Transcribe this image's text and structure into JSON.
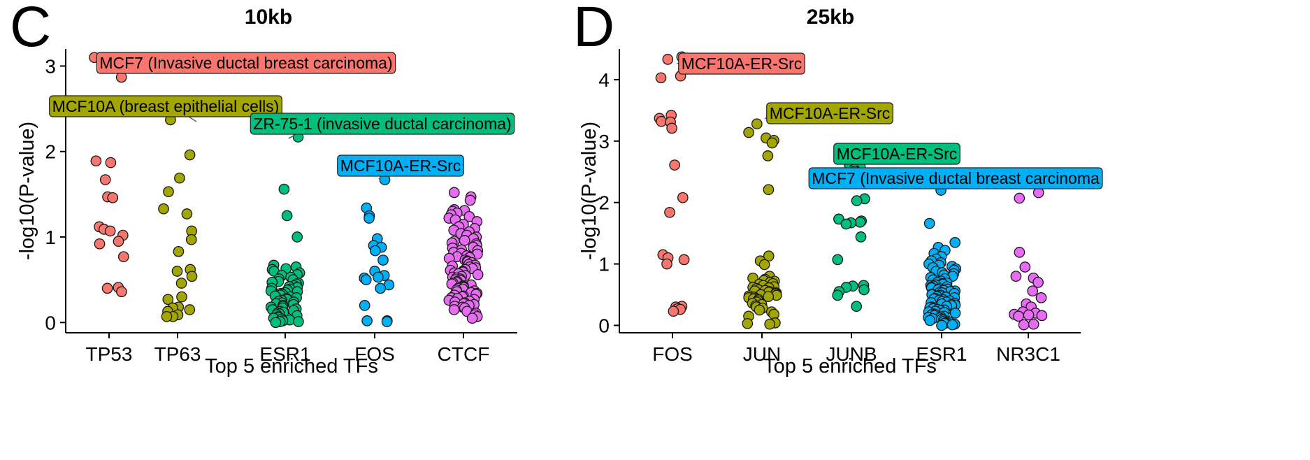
{
  "chart_data": [
    {
      "panel": "C",
      "type": "scatter",
      "title": "10kb",
      "xlabel": "Top 5 enriched TFs",
      "ylabel": "-log10(P-value)",
      "categories": [
        "TP53",
        "TP63",
        "ESR1",
        "FOS",
        "CTCF"
      ],
      "colors": [
        "#F8766D",
        "#A3A500",
        "#00BF7D",
        "#00B0F6",
        "#E76BF3"
      ],
      "ylim": [
        -0.12,
        3.2
      ],
      "yticks": [
        0,
        1,
        2,
        3
      ],
      "grid": false,
      "series": [
        {
          "category": "TP53",
          "values": [
            3.1,
            2.87,
            1.89,
            1.87,
            1.67,
            1.47,
            1.46,
            1.12,
            1.09,
            1.07,
            1.02,
            0.95,
            0.92,
            0.77,
            0.41,
            0.4,
            0.36
          ]
        },
        {
          "category": "TP63",
          "values": [
            2.52,
            2.37,
            1.96,
            1.69,
            1.53,
            1.33,
            1.27,
            1.07,
            0.97,
            0.83,
            0.62,
            0.6,
            0.54,
            0.46,
            0.3,
            0.27,
            0.18,
            0.17,
            0.15,
            0.13,
            0.09,
            0.07,
            0.07
          ]
        },
        {
          "category": "ESR1",
          "values": [
            2.17,
            1.56,
            1.25,
            1.0,
            0.67,
            0.65,
            0.63,
            0.62,
            0.6,
            0.58,
            0.56,
            0.55,
            0.53,
            0.51,
            0.5,
            0.48,
            0.47,
            0.46,
            0.45,
            0.43,
            0.42,
            0.41,
            0.4,
            0.39,
            0.38,
            0.37,
            0.36,
            0.35,
            0.34,
            0.33,
            0.32,
            0.31,
            0.3,
            0.29,
            0.28,
            0.27,
            0.26,
            0.25,
            0.24,
            0.23,
            0.22,
            0.21,
            0.2,
            0.19,
            0.18,
            0.17,
            0.16,
            0.15,
            0.14,
            0.13,
            0.12,
            0.11,
            0.1,
            0.09,
            0.08,
            0.07,
            0.06,
            0.05,
            0.04,
            0.03,
            0.02,
            0.01,
            0.01,
            0.0
          ]
        },
        {
          "category": "FOS",
          "values": [
            1.67,
            1.34,
            1.25,
            1.22,
            0.98,
            0.9,
            0.88,
            0.84,
            0.73,
            0.6,
            0.55,
            0.53,
            0.52,
            0.5,
            0.44,
            0.4,
            0.2,
            0.02,
            0.02,
            0.01
          ]
        },
        {
          "category": "CTCF",
          "values": [
            1.52,
            1.47,
            1.43,
            1.32,
            1.31,
            1.3,
            1.28,
            1.26,
            1.24,
            1.22,
            1.2,
            1.18,
            1.15,
            1.12,
            1.1,
            1.08,
            1.06,
            1.04,
            1.02,
            1.0,
            0.98,
            0.96,
            0.95,
            0.93,
            0.92,
            0.9,
            0.88,
            0.87,
            0.85,
            0.84,
            0.82,
            0.81,
            0.8,
            0.78,
            0.77,
            0.76,
            0.75,
            0.73,
            0.72,
            0.71,
            0.7,
            0.68,
            0.67,
            0.66,
            0.65,
            0.64,
            0.63,
            0.62,
            0.61,
            0.6,
            0.59,
            0.58,
            0.57,
            0.56,
            0.55,
            0.54,
            0.53,
            0.52,
            0.51,
            0.5,
            0.49,
            0.48,
            0.47,
            0.46,
            0.45,
            0.44,
            0.43,
            0.42,
            0.41,
            0.4,
            0.39,
            0.38,
            0.37,
            0.36,
            0.35,
            0.34,
            0.33,
            0.32,
            0.31,
            0.3,
            0.29,
            0.28,
            0.27,
            0.26,
            0.25,
            0.24,
            0.23,
            0.22,
            0.21,
            0.2,
            0.19,
            0.18,
            0.17,
            0.15,
            0.13,
            0.11,
            0.09,
            0.07,
            0.05
          ]
        }
      ],
      "annotations": [
        {
          "text": "MCF7 (Invasive ductal breast carcinoma)",
          "category": "TP53",
          "value": 3.1,
          "label_x": "TP53",
          "label_y": 3.05,
          "anchor": "left-of-label",
          "color": "#F8766D"
        },
        {
          "text": "MCF10A (breast epithelial cells)",
          "category": "TP63",
          "value": 2.37,
          "label_x": "TP63",
          "label_y": 2.55,
          "anchor": "center",
          "color": "#A3A500"
        },
        {
          "text": "ZR-75-1 (invasive ductal carcinoma)",
          "category": "ESR1",
          "value": 2.17,
          "label_x": "ESR1",
          "label_y": 2.34,
          "anchor": "center",
          "color": "#00BF7D"
        },
        {
          "text": "MCF10A-ER-Src",
          "category": "FOS",
          "value": 1.67,
          "label_x": "FOS",
          "label_y": 1.84,
          "anchor": "center",
          "color": "#00B0F6"
        }
      ]
    },
    {
      "panel": "D",
      "type": "scatter",
      "title": "25kb",
      "xlabel": "Top 5 enriched TFs",
      "ylabel": "-log10(P-value)",
      "categories": [
        "FOS",
        "JUN",
        "JUNB",
        "ESR1",
        "NR3C1"
      ],
      "colors": [
        "#F8766D",
        "#A3A500",
        "#00BF7D",
        "#00B0F6",
        "#E76BF3"
      ],
      "ylim": [
        -0.12,
        4.5
      ],
      "yticks": [
        0,
        1,
        2,
        3,
        4
      ],
      "grid": false,
      "series": [
        {
          "category": "FOS",
          "values": [
            4.37,
            4.33,
            4.06,
            4.03,
            3.42,
            3.37,
            3.32,
            3.31,
            3.21,
            2.61,
            2.08,
            1.84,
            1.15,
            1.1,
            1.07,
            1.0,
            0.31,
            0.3,
            0.27,
            0.26,
            0.23
          ]
        },
        {
          "category": "JUN",
          "values": [
            3.28,
            3.14,
            3.05,
            3.01,
            2.97,
            2.76,
            2.21,
            1.13,
            1.05,
            0.99,
            0.8,
            0.77,
            0.75,
            0.73,
            0.72,
            0.7,
            0.68,
            0.67,
            0.65,
            0.63,
            0.62,
            0.61,
            0.6,
            0.58,
            0.57,
            0.56,
            0.55,
            0.54,
            0.53,
            0.52,
            0.51,
            0.5,
            0.49,
            0.48,
            0.47,
            0.46,
            0.45,
            0.44,
            0.43,
            0.42,
            0.4,
            0.38,
            0.36,
            0.34,
            0.32,
            0.3,
            0.28,
            0.25,
            0.22,
            0.18,
            0.15,
            0.04,
            0.03,
            0.02
          ]
        },
        {
          "category": "JUNB",
          "values": [
            2.62,
            2.59,
            2.58,
            2.54,
            2.51,
            2.06,
            2.03,
            1.73,
            1.7,
            1.68,
            1.67,
            1.65,
            1.44,
            1.07,
            0.65,
            0.64,
            0.62,
            0.58,
            0.55,
            0.49,
            0.31
          ]
        },
        {
          "category": "ESR1",
          "values": [
            2.2,
            1.66,
            1.35,
            1.27,
            1.22,
            1.17,
            1.12,
            1.08,
            1.05,
            1.02,
            1.0,
            0.98,
            0.96,
            0.94,
            0.92,
            0.9,
            0.88,
            0.86,
            0.84,
            0.82,
            0.8,
            0.78,
            0.76,
            0.74,
            0.72,
            0.7,
            0.69,
            0.68,
            0.67,
            0.66,
            0.65,
            0.64,
            0.63,
            0.62,
            0.61,
            0.6,
            0.59,
            0.58,
            0.57,
            0.56,
            0.55,
            0.54,
            0.53,
            0.52,
            0.51,
            0.5,
            0.49,
            0.48,
            0.47,
            0.46,
            0.45,
            0.44,
            0.43,
            0.42,
            0.41,
            0.4,
            0.39,
            0.38,
            0.37,
            0.36,
            0.35,
            0.34,
            0.33,
            0.32,
            0.31,
            0.3,
            0.29,
            0.28,
            0.27,
            0.26,
            0.25,
            0.24,
            0.23,
            0.22,
            0.21,
            0.2,
            0.19,
            0.18,
            0.17,
            0.16,
            0.15,
            0.14,
            0.13,
            0.12,
            0.11,
            0.1,
            0.09,
            0.08,
            0.07,
            0.06,
            0.05,
            0.04,
            0.03,
            0.02,
            0.01,
            0.0
          ]
        },
        {
          "category": "NR3C1",
          "values": [
            2.16,
            2.07,
            1.19,
            0.95,
            0.8,
            0.77,
            0.7,
            0.56,
            0.45,
            0.35,
            0.3,
            0.22,
            0.2,
            0.18,
            0.17,
            0.16,
            0.15,
            0.02,
            0.01
          ]
        }
      ],
      "annotations": [
        {
          "text": "MCF10A-ER-Src",
          "category": "FOS",
          "value": 4.37,
          "label_x": "FOS",
          "label_y": 4.3,
          "anchor": "left-of-label",
          "color": "#F8766D"
        },
        {
          "text": "MCF10A-ER-Src",
          "category": "JUN",
          "value": 3.28,
          "label_x": "JUN",
          "label_y": 3.45,
          "anchor": "left-of-label",
          "color": "#A3A500"
        },
        {
          "text": "MCF10A-ER-Src",
          "category": "JUNB",
          "value": 2.62,
          "label_x": "JUNB",
          "label_y": 2.77,
          "anchor": "center",
          "color": "#00BF7D"
        },
        {
          "text": "MCF7 (Invasive ductal breast carcinoma",
          "category": "ESR1",
          "value": 2.2,
          "label_x": "ESR1",
          "label_y": 2.37,
          "anchor": "center",
          "color": "#00B0F6"
        }
      ]
    }
  ]
}
